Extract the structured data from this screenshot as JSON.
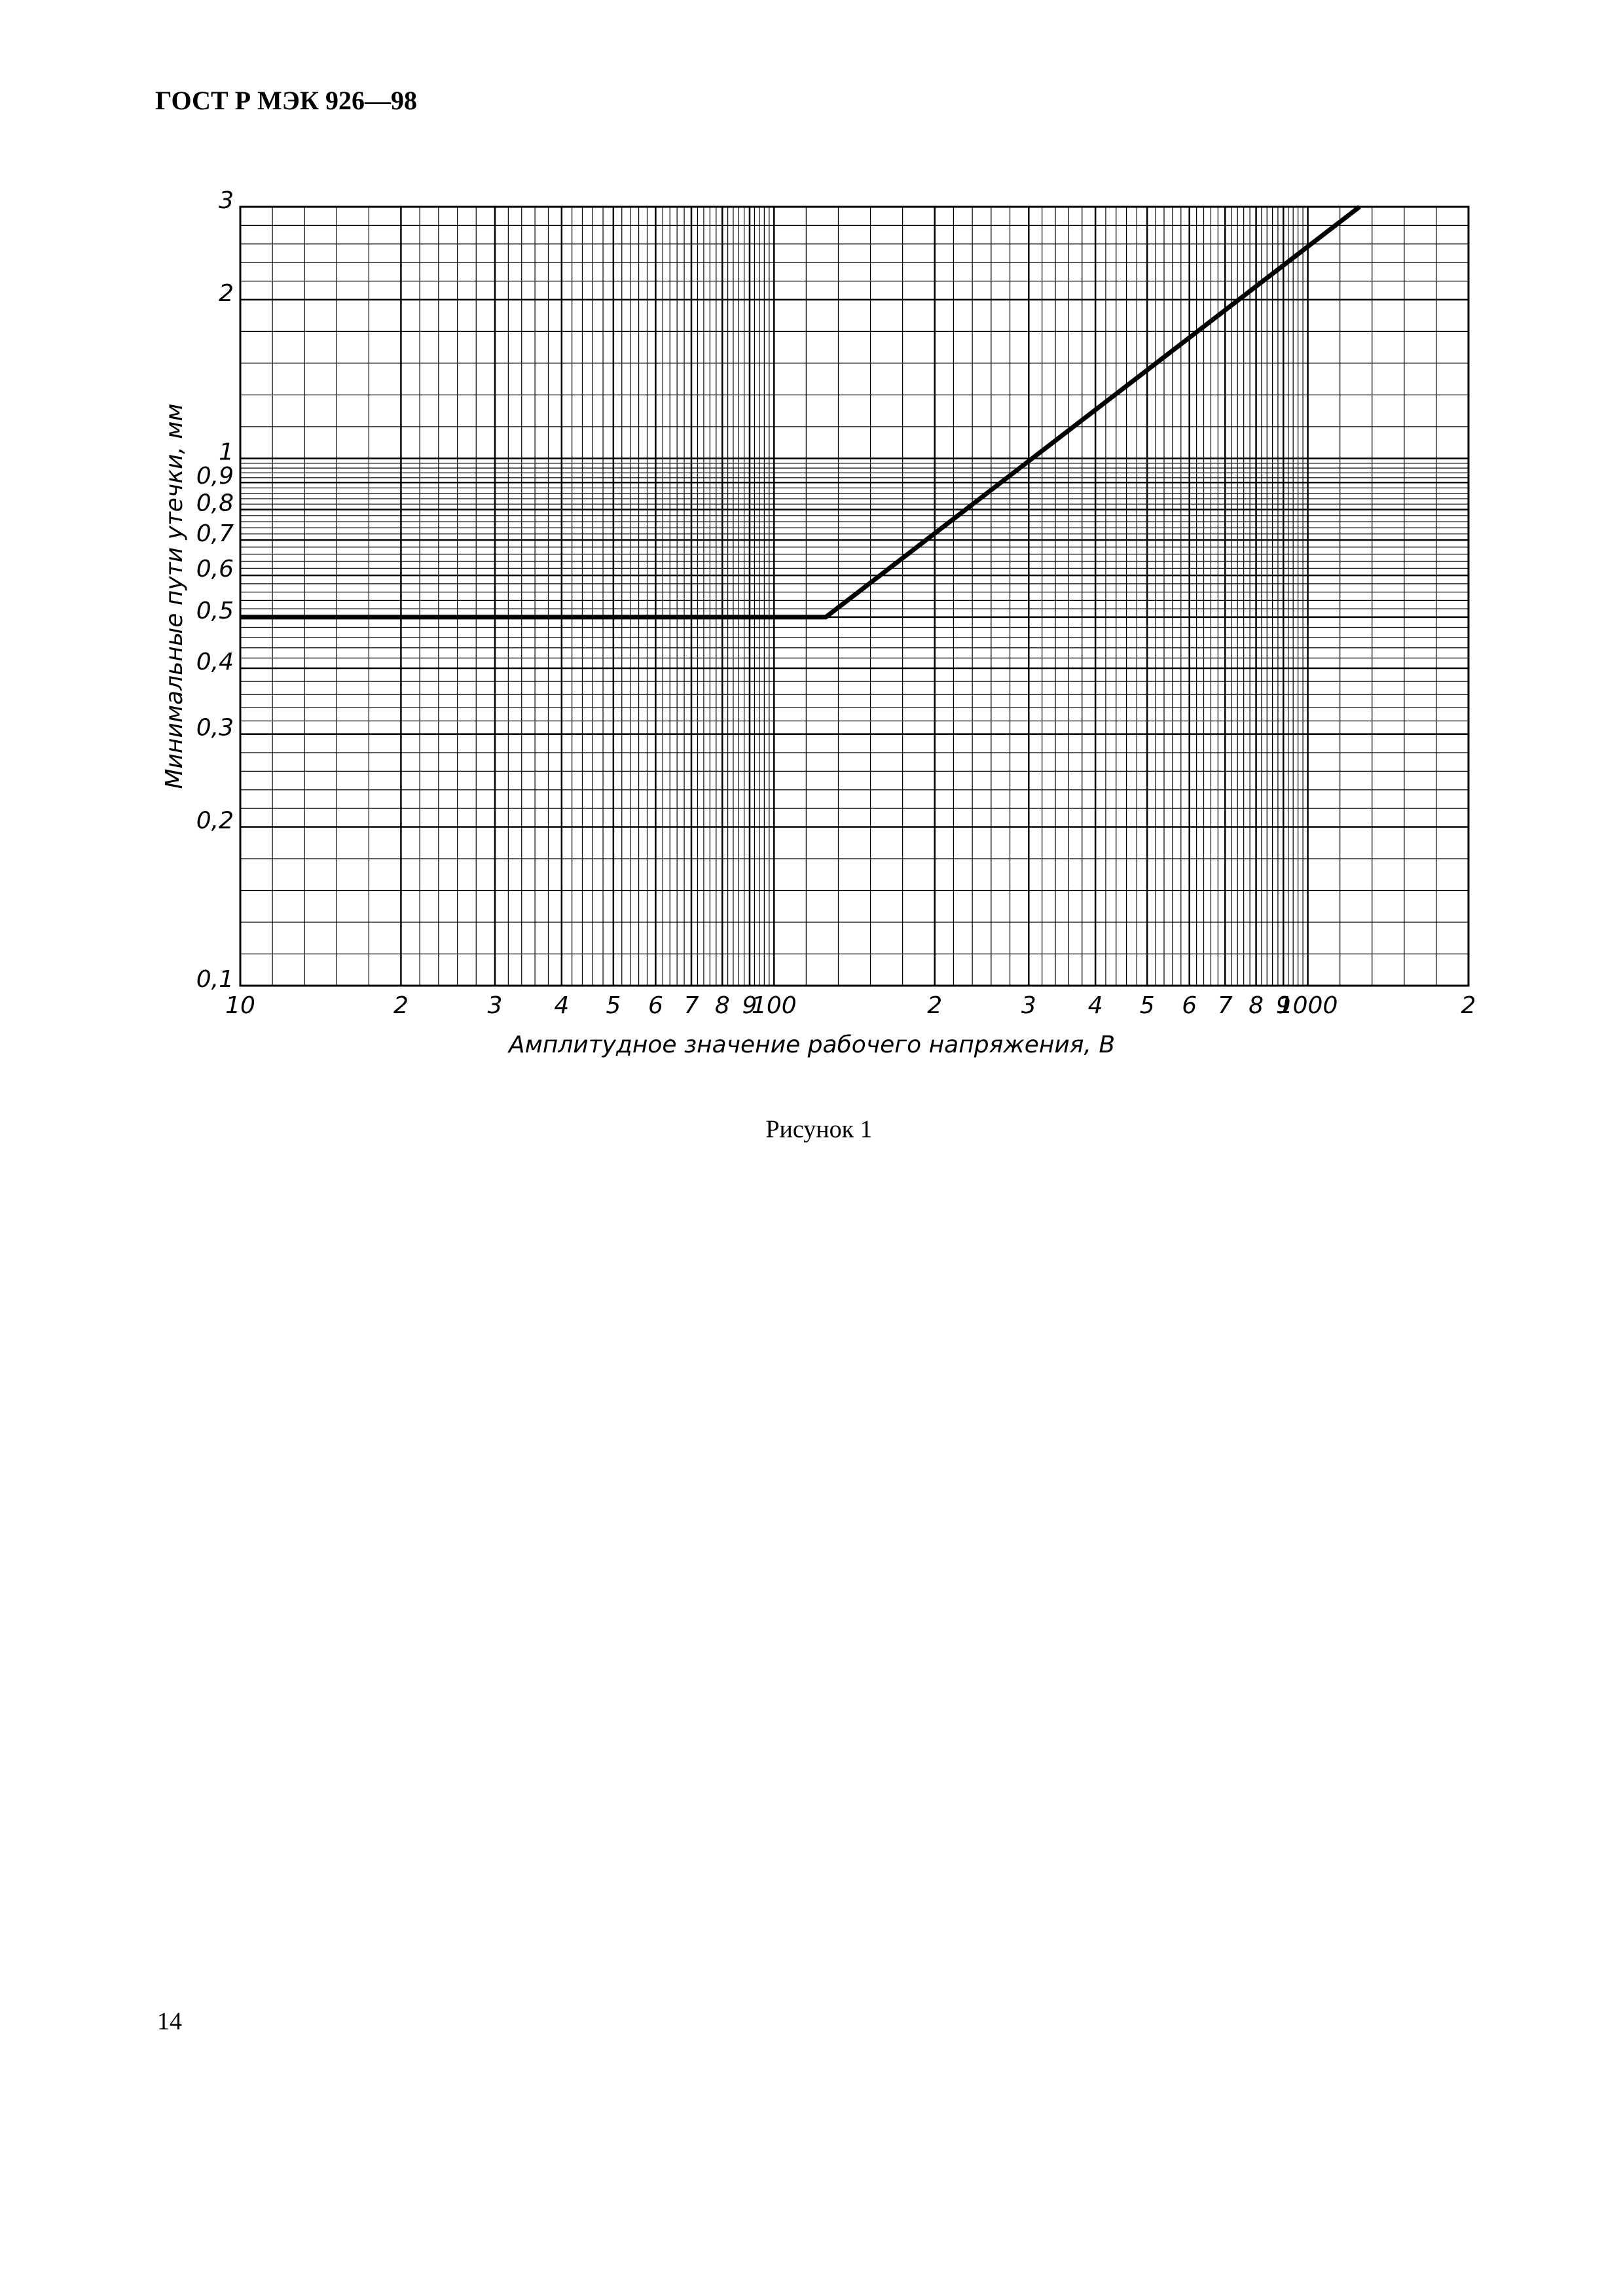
{
  "header": {
    "title": "ГОСТ Р МЭК 926—98"
  },
  "caption": "Рисунок 1",
  "page_number": "14",
  "chart_data": {
    "type": "line",
    "x_label": "Амплитудное значение рабочего напряжения, В",
    "y_label": "Минимальные пути утечки, мм",
    "x": [
      10,
      125,
      1250
    ],
    "values": [
      0.5,
      0.5,
      3
    ],
    "color": "#000000",
    "log_x": true,
    "log_y": true,
    "grid": true,
    "xlim": [
      10,
      2000
    ],
    "ylim": [
      0.1,
      3
    ],
    "xticks": [
      10,
      {
        "value": 20,
        "label": "2"
      },
      {
        "value": 30,
        "label": "3"
      },
      {
        "value": 40,
        "label": "4"
      },
      {
        "value": 50,
        "label": "5"
      },
      {
        "value": 60,
        "label": "6"
      },
      {
        "value": 70,
        "label": "7"
      },
      {
        "value": 80,
        "label": "8"
      },
      {
        "value": 90,
        "label": "9"
      },
      100,
      {
        "value": 200,
        "label": "2"
      },
      {
        "value": 300,
        "label": "3"
      },
      {
        "value": 400,
        "label": "4"
      },
      {
        "value": 500,
        "label": "5"
      },
      {
        "value": 600,
        "label": "6"
      },
      {
        "value": 700,
        "label": "7"
      },
      {
        "value": 800,
        "label": "8"
      },
      {
        "value": 900,
        "label": "9"
      },
      1000,
      {
        "value": 2000,
        "label": "2"
      }
    ],
    "yticks": [
      {
        "value": 0.1,
        "label": "0,1"
      },
      {
        "value": 0.2,
        "label": "0,2"
      },
      {
        "value": 0.3,
        "label": "0,3"
      },
      {
        "value": 0.4,
        "label": "0,4"
      },
      {
        "value": 0.5,
        "label": "0,5"
      },
      {
        "value": 0.6,
        "label": "0,6"
      },
      {
        "value": 0.7,
        "label": "0,7"
      },
      {
        "value": 0.8,
        "label": "0,8"
      },
      {
        "value": 0.9,
        "label": "0,9"
      },
      1,
      2,
      3
    ]
  }
}
